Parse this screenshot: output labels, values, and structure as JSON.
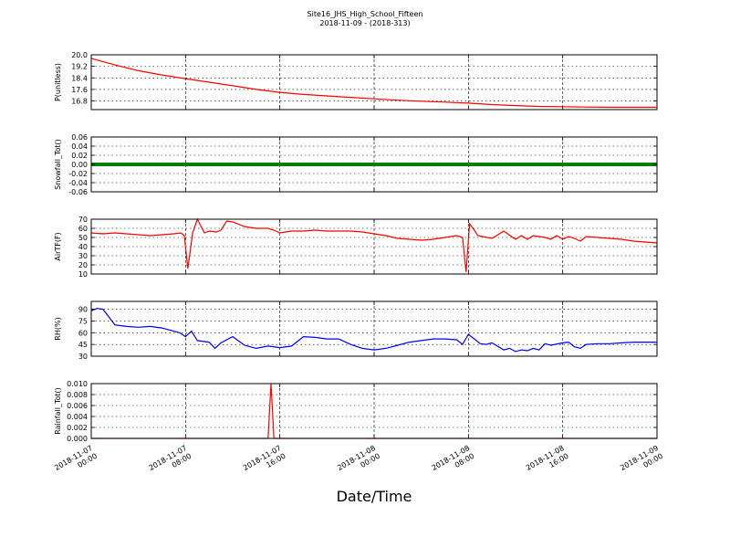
{
  "page": {
    "title": "Site16_JHS_High_School_Fifteen",
    "subtitle": "2018-11-09 - (2018-313)",
    "xlabel": "Date/Time"
  },
  "chart_data": {
    "type": "line",
    "x_ticks": [
      [
        "2018-11-07",
        "00:00"
      ],
      [
        "2018-11-07",
        "08:00"
      ],
      [
        "2018-11-07",
        "16:00"
      ],
      [
        "2018-11-08",
        "00:00"
      ],
      [
        "2018-11-08",
        "08:00"
      ],
      [
        "2018-11-08",
        "16:00"
      ],
      [
        "2018-11-09",
        "00:00"
      ]
    ],
    "x_range_hours": [
      0,
      48
    ],
    "grid": true,
    "panels": [
      {
        "ylabel": "P(unitless)",
        "ylim": [
          16.2,
          20.0
        ],
        "yticks": [
          "20.0",
          "19.2",
          "18.4",
          "17.6",
          "16.8"
        ],
        "ytick_values": [
          20.0,
          19.2,
          18.4,
          17.6,
          16.8
        ],
        "color": "#ff0000",
        "series": [
          {
            "x": [
              0,
              2,
              4,
              6,
              8,
              10,
              12,
              14,
              16,
              18,
              20,
              22,
              24,
              26,
              28,
              30,
              32,
              34,
              36,
              38,
              40,
              42,
              44,
              46,
              48
            ],
            "y": [
              19.75,
              19.3,
              18.9,
              18.6,
              18.35,
              18.1,
              17.85,
              17.6,
              17.4,
              17.25,
              17.15,
              17.05,
              16.95,
              16.85,
              16.78,
              16.72,
              16.65,
              16.55,
              16.48,
              16.42,
              16.4,
              16.38,
              16.36,
              16.36,
              16.36
            ]
          }
        ]
      },
      {
        "ylabel": "Snowfall_Tot()",
        "ylim": [
          -0.06,
          0.06
        ],
        "yticks": [
          "0.06",
          "0.04",
          "0.02",
          "0.00",
          "-0.02",
          "-0.04",
          "-0.06"
        ],
        "ytick_values": [
          0.06,
          0.04,
          0.02,
          0.0,
          -0.02,
          -0.04,
          -0.06
        ],
        "color": "#008000",
        "series": [
          {
            "x": [
              0,
              48
            ],
            "y": [
              0.0,
              0.0
            ]
          }
        ]
      },
      {
        "ylabel": "AirTF(F)",
        "ylim": [
          10,
          70
        ],
        "yticks": [
          "70",
          "60",
          "50",
          "40",
          "30",
          "20",
          "10"
        ],
        "ytick_values": [
          70,
          60,
          50,
          40,
          30,
          20,
          10
        ],
        "color": "#ff0000",
        "series": [
          {
            "x": [
              0,
              1,
              2,
              3,
              4,
              5,
              6,
              7,
              7.6,
              7.9,
              8.2,
              8.6,
              9.0,
              9.6,
              10,
              10.6,
              11,
              11.5,
              12,
              13,
              14,
              15,
              15.5,
              16,
              17,
              18,
              19,
              20,
              21,
              22,
              23,
              24,
              25,
              26,
              27,
              28,
              29,
              30,
              31,
              31.5,
              31.8,
              32.1,
              32.4,
              32.8,
              33.2,
              34,
              35,
              36,
              36.5,
              37,
              37.5,
              38,
              38.5,
              39,
              39.5,
              40,
              40.5,
              41,
              41.5,
              42,
              43,
              44,
              45,
              46,
              47,
              48
            ],
            "y": [
              55,
              54,
              55,
              54,
              53,
              52,
              53,
              54,
              55,
              52,
              16,
              55,
              70,
              55,
              57,
              56,
              58,
              68,
              67,
              62,
              60,
              60,
              58,
              55,
              57,
              57,
              58,
              57,
              57,
              57,
              56,
              54,
              52,
              49,
              48,
              47,
              48,
              50,
              52,
              50,
              12,
              65,
              60,
              52,
              51,
              49,
              57,
              48,
              52,
              48,
              52,
              51,
              50,
              48,
              52,
              48,
              51,
              49,
              46,
              51,
              50,
              49,
              48,
              46,
              45,
              44
            ]
          }
        ]
      },
      {
        "ylabel": "RH(%)",
        "ylim": [
          30,
          100
        ],
        "yticks": [
          "90",
          "75",
          "60",
          "45",
          "30"
        ],
        "ytick_values": [
          90,
          75,
          60,
          45,
          30
        ],
        "color": "#0000ff",
        "series": [
          {
            "x": [
              0,
              0.5,
              1,
              1.5,
              2,
              3,
              4,
              5,
              6,
              7,
              7.5,
              8,
              8.5,
              9,
              10,
              10.5,
              11,
              12,
              13,
              14,
              15,
              16,
              17,
              18,
              19,
              20,
              21,
              22,
              23,
              24,
              25,
              26,
              27,
              28,
              29,
              30,
              31,
              31.5,
              32,
              32.5,
              33,
              33.5,
              34,
              35,
              35.5,
              36,
              36.5,
              37,
              37.5,
              38,
              38.5,
              39,
              40,
              40.5,
              41,
              41.5,
              42,
              43,
              44,
              45,
              46,
              47,
              48
            ],
            "y": [
              88,
              91,
              90,
              80,
              70,
              68,
              67,
              68,
              66,
              62,
              60,
              55,
              62,
              50,
              48,
              40,
              47,
              55,
              44,
              40,
              43,
              41,
              43,
              55,
              54,
              52,
              52,
              45,
              40,
              38,
              40,
              44,
              48,
              50,
              52,
              52,
              51,
              45,
              58,
              52,
              46,
              45,
              47,
              38,
              40,
              36,
              38,
              37,
              40,
              38,
              46,
              44,
              47,
              48,
              42,
              40,
              45,
              46,
              46,
              47,
              48,
              48,
              48
            ]
          }
        ]
      },
      {
        "ylabel": "Rainfall_Tot()",
        "ylim": [
          0,
          0.01
        ],
        "yticks": [
          "0.010",
          "0.008",
          "0.006",
          "0.004",
          "0.002",
          "0.000"
        ],
        "ytick_values": [
          0.01,
          0.008,
          0.006,
          0.004,
          0.002,
          0.0
        ],
        "color": "#ff0000",
        "series": [
          {
            "x": [
              0,
              15,
              15.25,
              15.5,
              48
            ],
            "y": [
              0,
              0,
              0.01,
              0,
              0
            ]
          }
        ]
      }
    ]
  }
}
